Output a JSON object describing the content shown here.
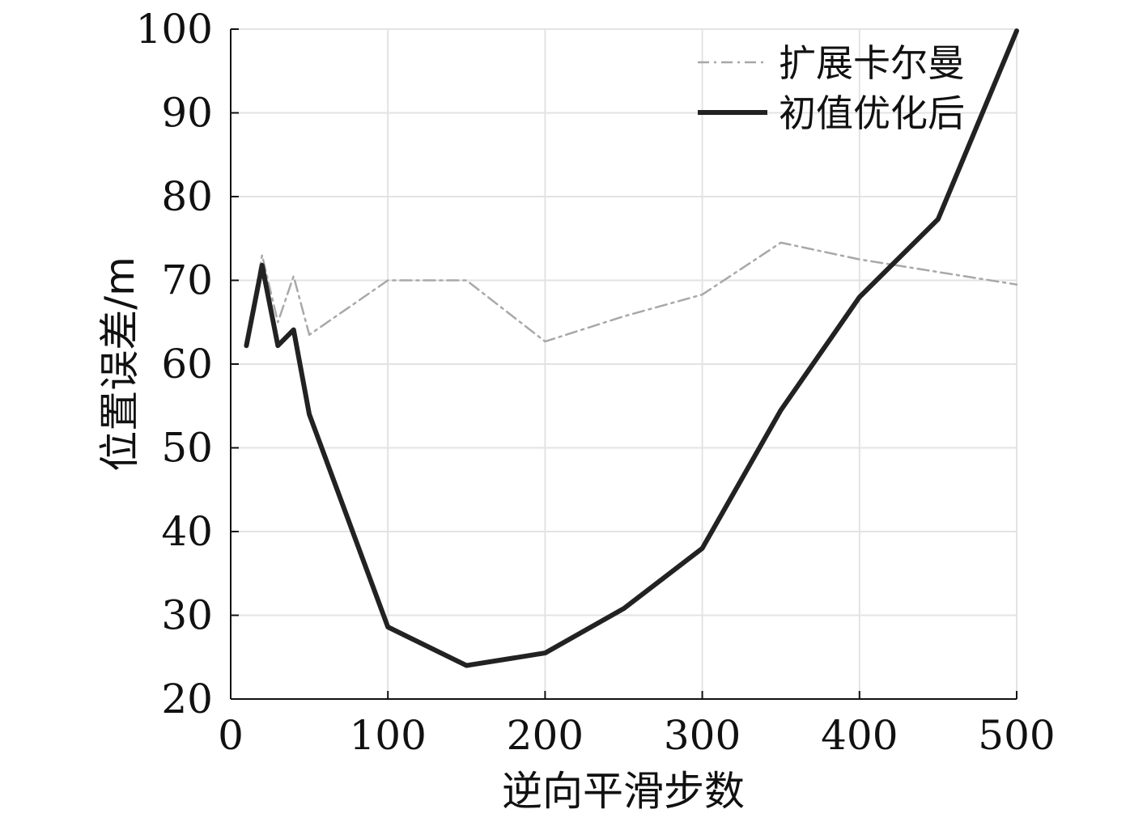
{
  "chart_data": {
    "type": "line",
    "title": "",
    "xlabel": "逆向平滑步数",
    "ylabel": "位置误差/m",
    "xlim": [
      0,
      500
    ],
    "ylim": [
      20,
      100
    ],
    "xticks": [
      0,
      100,
      200,
      300,
      400,
      500
    ],
    "yticks": [
      20,
      30,
      40,
      50,
      60,
      70,
      80,
      90,
      100
    ],
    "grid": true,
    "legend_position": "top-right",
    "series": [
      {
        "name": "扩展卡尔曼",
        "style": "dash-dot",
        "color": "#a8a8a8",
        "x": [
          10,
          20,
          30,
          40,
          50,
          100,
          150,
          200,
          250,
          300,
          350,
          400,
          450,
          500
        ],
        "y": [
          62.5,
          73,
          65,
          70.5,
          63.5,
          70,
          70,
          62.7,
          65.7,
          68.3,
          74.5,
          72.5,
          71,
          69.5
        ]
      },
      {
        "name": "初值优化后",
        "style": "solid",
        "color": "#222222",
        "x": [
          10,
          20,
          30,
          40,
          50,
          100,
          150,
          200,
          250,
          300,
          350,
          400,
          450,
          500
        ],
        "y": [
          62.2,
          71.8,
          62.2,
          64.1,
          54,
          28.6,
          24,
          25.5,
          30.8,
          38,
          54.5,
          68,
          77.3,
          99.8
        ]
      }
    ]
  }
}
